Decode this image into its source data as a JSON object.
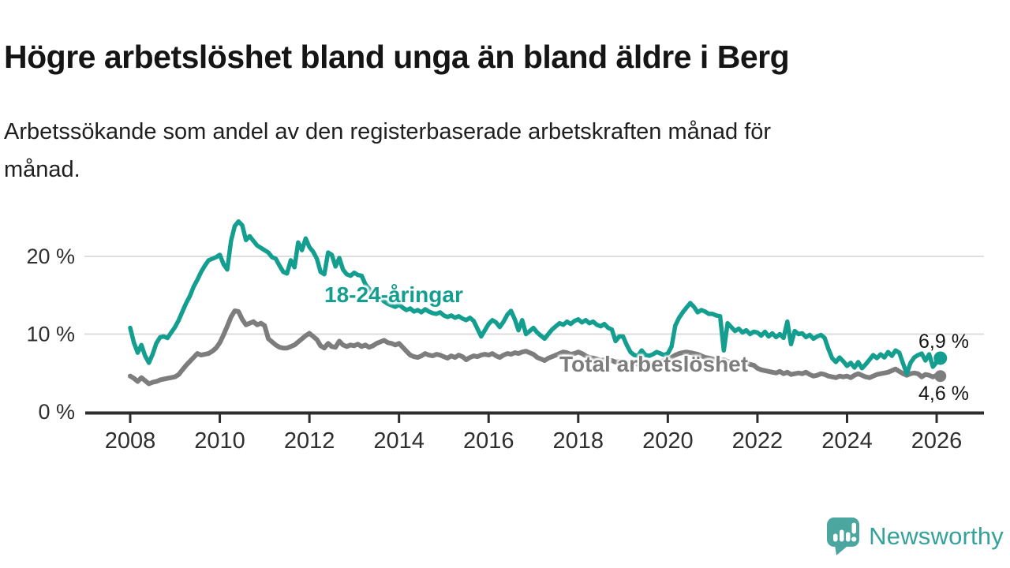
{
  "header": {
    "title": "Högre arbetslöshet bland unga än bland äldre i Berg",
    "subtitle": "Arbetssökande som andel av den registerbaserade arbetskraften månad för\nmånad."
  },
  "chart_data": {
    "type": "line",
    "title": "Högre arbetslöshet bland unga än bland äldre i Berg",
    "xlabel": "",
    "ylabel": "",
    "unit": "%",
    "frequency": "monthly",
    "x_start": "2008-01",
    "x_end": "2026-02",
    "grid": "horizontal",
    "ylim": [
      0,
      26
    ],
    "colors": {
      "gridline": "#d9d9d9",
      "axis": "#2d2d2d",
      "tick_text": "#2f2f2f"
    },
    "x_ticks": [
      {
        "year": 2008,
        "label": "2008"
      },
      {
        "year": 2010,
        "label": "2010"
      },
      {
        "year": 2012,
        "label": "2012"
      },
      {
        "year": 2014,
        "label": "2014"
      },
      {
        "year": 2016,
        "label": "2016"
      },
      {
        "year": 2018,
        "label": "2018"
      },
      {
        "year": 2020,
        "label": "2020"
      },
      {
        "year": 2022,
        "label": "2022"
      },
      {
        "year": 2024,
        "label": "2024"
      },
      {
        "year": 2026,
        "label": "2026"
      }
    ],
    "y_ticks": [
      {
        "value": 20,
        "label": "20 %"
      },
      {
        "value": 10,
        "label": "10 %"
      },
      {
        "value": 0,
        "label": "0 %"
      }
    ],
    "series": [
      {
        "name": "18-24-åringar",
        "color": "#149e8f",
        "line_width": 5.5,
        "end_label": "6,9 %",
        "end_value": 6.9,
        "values": [
          10.8,
          8.9,
          7.6,
          8.6,
          7.2,
          6.3,
          7.4,
          8.8,
          9.6,
          9.7,
          9.5,
          10.2,
          10.9,
          11.8,
          12.9,
          14,
          14.9,
          16.1,
          17,
          18,
          18.8,
          19.5,
          19.7,
          19.9,
          20.2,
          19,
          18.3,
          22,
          23.9,
          24.5,
          24,
          22.1,
          22.6,
          22,
          21.4,
          21.1,
          20.8,
          20.5,
          19.9,
          19.7,
          18.8,
          18,
          17.8,
          19.5,
          18.6,
          21.8,
          20.8,
          22.3,
          21.2,
          20.6,
          19.7,
          18,
          17.7,
          20.5,
          20.2,
          18.7,
          19.8,
          18.3,
          17.7,
          17.5,
          17.9,
          17.6,
          17.5,
          16.4,
          15.8,
          15.3,
          14.9,
          14.6,
          14.2,
          13.9,
          13.7,
          13.5,
          13.8,
          13.4,
          13.1,
          13.3,
          12.9,
          13.1,
          12.8,
          13.2,
          12.9,
          12.7,
          12.6,
          12.8,
          12.4,
          12.2,
          12.4,
          12.1,
          12.3,
          12,
          11.8,
          12.1,
          11.7,
          10.7,
          9.7,
          10.5,
          11.3,
          11.8,
          11.5,
          10.9,
          11.6,
          12.5,
          13,
          11.9,
          10.5,
          11.8,
          10,
          10.4,
          10.8,
          10.2,
          9.8,
          9.4,
          10,
          10.6,
          11,
          11.4,
          11.2,
          11.6,
          11.3,
          11.7,
          11.9,
          11.5,
          11.8,
          11.4,
          11.6,
          11.2,
          11,
          11.3,
          10.8,
          10.6,
          9.1,
          9.7,
          9.7,
          8.6,
          7.7,
          7.3,
          7.2,
          7.9,
          7.3,
          7.2,
          7.4,
          7.7,
          7.5,
          7.3,
          7.5,
          8.4,
          11.1,
          12.1,
          12.8,
          13.4,
          14,
          13.5,
          12.8,
          13.1,
          12.9,
          12.6,
          12.6,
          12.4,
          12.3,
          7.9,
          11.4,
          10.9,
          10.4,
          10.7,
          10.2,
          10.5,
          10,
          10.3,
          10.2,
          9.8,
          10.3,
          9.7,
          10.1,
          9.6,
          10,
          9.5,
          11.6,
          8.7,
          10.4,
          10,
          10.1,
          9.6,
          9.9,
          9.4,
          9.7,
          9.9,
          9.5,
          8.1,
          6.9,
          6.4,
          7,
          6.5,
          5.9,
          6.3,
          5.7,
          6.4,
          5.6,
          6.1,
          6.7,
          7.3,
          6.9,
          7.4,
          7,
          7.7,
          7.2,
          7.9,
          7.6,
          6.2,
          4.9,
          6.3,
          7,
          7.3,
          7.5,
          6.6,
          7.4,
          5.8,
          6.4,
          6.9
        ]
      },
      {
        "name": "Total arbetslöshet",
        "color": "#7d7d7d",
        "line_width": 6,
        "end_label": "4,6 %",
        "end_value": 4.6,
        "values": [
          4.6,
          4.3,
          3.9,
          4.4,
          4,
          3.6,
          3.8,
          3.9,
          4.1,
          4.2,
          4.3,
          4.4,
          4.5,
          4.8,
          5.4,
          6,
          6.5,
          7,
          7.5,
          7.3,
          7.4,
          7.5,
          7.8,
          8.2,
          8.9,
          9.9,
          11,
          12.2,
          13,
          12.9,
          11.9,
          11.2,
          11.4,
          11.6,
          11.2,
          11.4,
          11.1,
          9.4,
          9,
          8.6,
          8.3,
          8.2,
          8.2,
          8.4,
          8.6,
          9,
          9.4,
          9.8,
          10.1,
          9.7,
          9.3,
          8.5,
          8.2,
          8.8,
          8.4,
          8.3,
          9.1,
          8.6,
          8.4,
          8.6,
          8.5,
          8.7,
          8.4,
          8.6,
          8.3,
          8.5,
          8.8,
          9,
          9.2,
          8.9,
          8.8,
          8.6,
          8.8,
          8.3,
          7.8,
          7.3,
          7.1,
          7,
          7.2,
          7.5,
          7.3,
          7.2,
          7.4,
          7.3,
          7.1,
          6.9,
          7.2,
          7,
          7.3,
          7.1,
          6.7,
          7,
          7.2,
          7.1,
          7.3,
          7.4,
          7.3,
          7.5,
          7.2,
          7,
          7.3,
          7.5,
          7.4,
          7.6,
          7.5,
          7.7,
          7.8,
          7.6,
          7.4,
          7,
          6.8,
          6.6,
          6.9,
          7.1,
          7.3,
          7.5,
          7.7,
          7.6,
          7.4,
          7.5,
          7.7,
          7.5,
          7.2,
          7,
          6.9,
          6.8,
          6.6,
          6.7,
          6.5,
          6.6,
          6.4,
          6.5,
          6.4,
          6.3,
          6.2,
          6.3,
          6.1,
          6.2,
          6,
          6.2,
          6.3,
          6.4,
          6.5,
          6.6,
          6.8,
          7,
          7.3,
          7.5,
          7.6,
          7.7,
          7.6,
          7.5,
          7.4,
          7.2,
          7,
          6.9,
          6.8,
          6.7,
          6.6,
          6.7,
          6.5,
          6.4,
          6.5,
          6.3,
          6.2,
          6.3,
          6.1,
          6,
          5.6,
          5.4,
          5.3,
          5.2,
          5.1,
          5,
          5.2,
          4.9,
          5.1,
          4.8,
          4.9,
          5,
          4.9,
          5.1,
          4.8,
          4.6,
          4.7,
          4.9,
          4.8,
          4.6,
          4.5,
          4.4,
          4.6,
          4.5,
          4.6,
          4.4,
          4.7,
          4.9,
          4.7,
          4.5,
          4.4,
          4.6,
          4.8,
          4.9,
          5,
          5.1,
          5.3,
          5.5,
          5.2,
          4.9,
          4.7,
          4.9,
          5,
          4.9,
          4.5,
          4.8,
          4.7,
          4.5,
          4.7,
          4.6
        ]
      }
    ]
  },
  "branding": {
    "name": "Newsworthy",
    "icon_color": "#4ba6a0",
    "text_color": "#35a19b"
  }
}
